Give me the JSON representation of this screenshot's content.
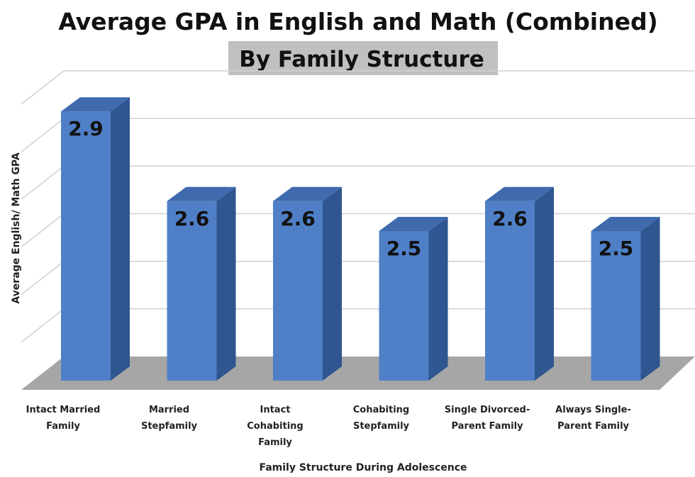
{
  "chart_data": {
    "type": "bar",
    "title": "Average GPA in English and Math (Combined)",
    "subtitle": "By Family Structure",
    "xlabel": "Family Structure During Adolescence",
    "ylabel": "Average English/ Math GPA",
    "categories": [
      "Intact Married Family",
      "Married Stepfamily",
      "Intact Cohabiting Family",
      "Cohabiting Stepfamily",
      "Single Divorced-Parent Family",
      "Always Single-Parent Family"
    ],
    "category_lines": [
      [
        "Intact Married",
        "Family"
      ],
      [
        "Married",
        "Stepfamily"
      ],
      [
        "Intact",
        "Cohabiting",
        "Family"
      ],
      [
        "Cohabiting",
        "Stepfamily"
      ],
      [
        "Single Divorced-",
        "Parent Family"
      ],
      [
        "Always Single-",
        "Parent Family"
      ]
    ],
    "values": [
      2.9,
      2.6,
      2.6,
      2.5,
      2.6,
      2.5
    ],
    "value_labels": [
      "2.9",
      "2.6",
      "2.6",
      "2.5",
      "2.6",
      "2.5"
    ],
    "ylim": [
      2.0,
      3.0
    ],
    "grid": true,
    "colors": {
      "bar_front": "#4F7FC7",
      "bar_side": "#2F5690",
      "bar_top": "#3F6AAE",
      "floor": "#A6A6A6",
      "grid": "#D0D0D0",
      "subtitle_bg": "#C0C0C0"
    }
  }
}
